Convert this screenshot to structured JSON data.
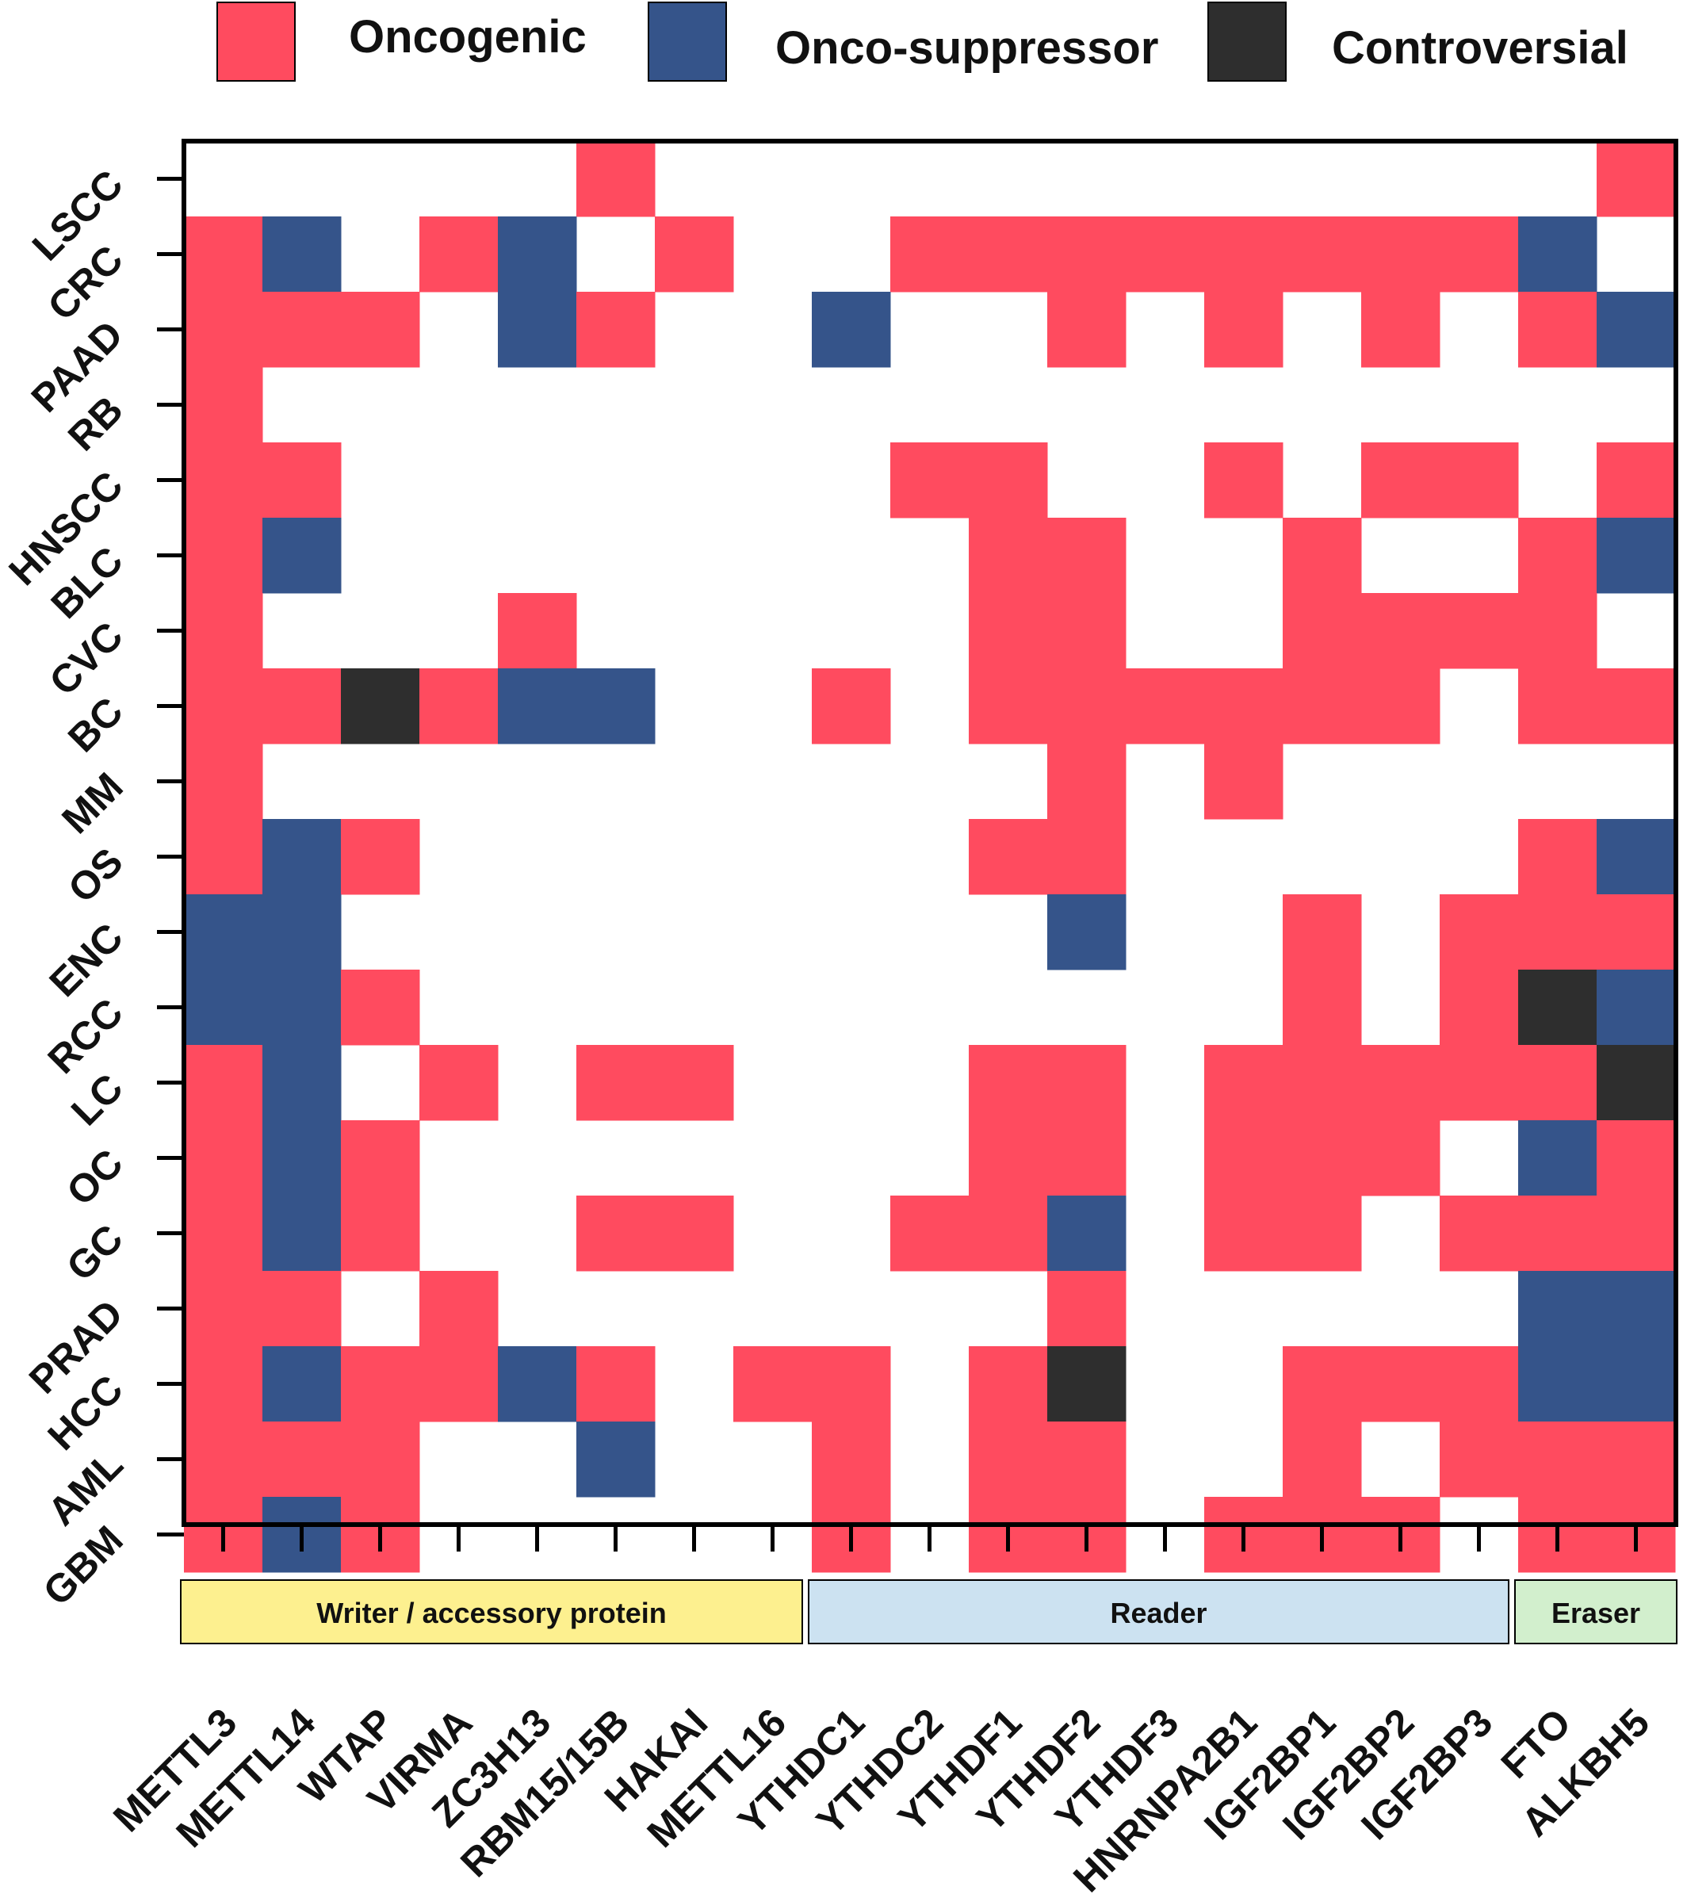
{
  "chart_data": {
    "type": "heatmap",
    "title": "",
    "xlabel": "",
    "ylabel": "",
    "legend": {
      "placement": "top",
      "entries": [
        {
          "key": "O",
          "label": "Oncogenic",
          "color": "#ff4b5f"
        },
        {
          "key": "S",
          "label": "Onco-suppressor",
          "color": "#35548a"
        },
        {
          "key": "C",
          "label": "Controversial",
          "color": "#2e2e2e"
        }
      ]
    },
    "columns": [
      "METTL3",
      "METTL14",
      "WTAP",
      "VIRMA",
      "ZC3H13",
      "RBM15/15B",
      "HAKAI",
      "METTL16",
      "YTHDC1",
      "YTHDC2",
      "YTHDF1",
      "YTHDF2",
      "YTHDF3",
      "HNRNPA2B1",
      "IGF2BP1",
      "IGF2BP2",
      "IGF2BP3",
      "FTO",
      "ALKBH5"
    ],
    "rows": [
      "LSCC",
      "CRC",
      "PAAD",
      "RB",
      "HNSCC",
      "BLC",
      "CVC",
      "BC",
      "MM",
      "OS",
      "ENC",
      "RCC",
      "LC",
      "OC",
      "GC",
      "PRAD",
      "HCC",
      "AML",
      "GBM"
    ],
    "groups": [
      {
        "label": "Writer / accessory protein",
        "start": 0,
        "end": 7,
        "color": "#fdf08f"
      },
      {
        "label": "Reader",
        "start": 8,
        "end": 16,
        "color": "#cce2f1"
      },
      {
        "label": "Eraser",
        "start": 17,
        "end": 18,
        "color": "#d2efcd"
      }
    ],
    "cells": [
      ".....O............O",
      "OS.OS.O..OOOOOOOOS.",
      "OOO.SO..S..O.O.O.OS",
      "O..................",
      "OO.......OO..O.OO.O",
      "OS........OO..O..OS",
      "O...O.....OO..OOOO.",
      "OOCOSS..O.OOOOOO.OO",
      "O..........O.O.....",
      "OSO.......OO.....OS",
      "SS.........S..O.OOO",
      "SSO...........O.OCS",
      "OS.O.OO...OO.OOOOOC",
      "OSO.......OO.OOO.SO",
      "OSO..OO..OOS.OO.OOO",
      "OO.O.......O.....SS",
      "OSOOSO.OO.OC..OOOSS",
      "OOO..S..O.OO..O.OOO",
      "OSO.....O.OO.OOO.OO"
    ]
  }
}
